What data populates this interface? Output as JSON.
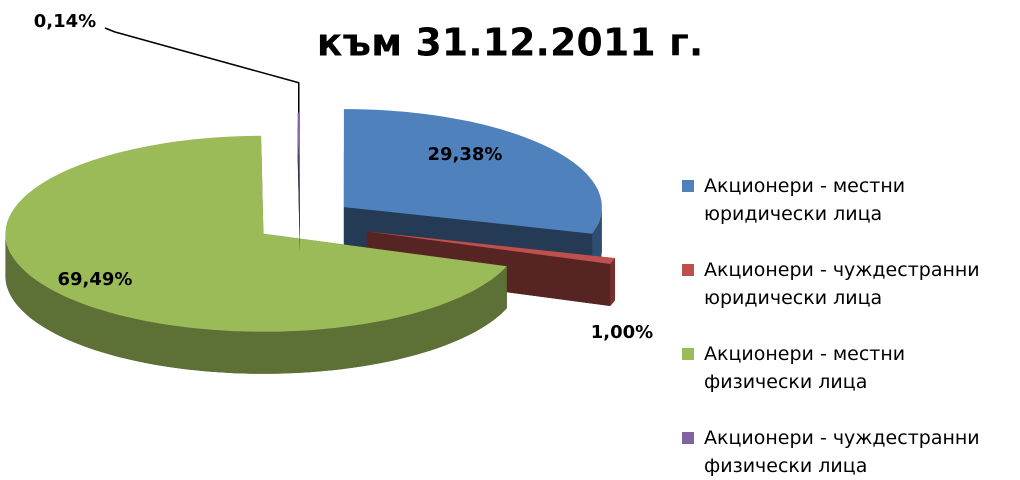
{
  "chart_data": {
    "type": "pie",
    "title": "към 31.12.2011 г.",
    "categories": [
      "Акционери - местни юридически лица",
      "Акционери - чуждестранни юридически лица",
      "Акционери - местни физически лица",
      "Акционери - чуждестранни физически лица"
    ],
    "values": [
      29.38,
      1.0,
      69.49,
      0.14
    ],
    "value_labels": [
      "29,38%",
      "1,00%",
      "69,49%",
      "0,14%"
    ],
    "colors": [
      "#4f81bd",
      "#c0504d",
      "#9bbb59",
      "#8064a2"
    ],
    "legend": "right"
  }
}
